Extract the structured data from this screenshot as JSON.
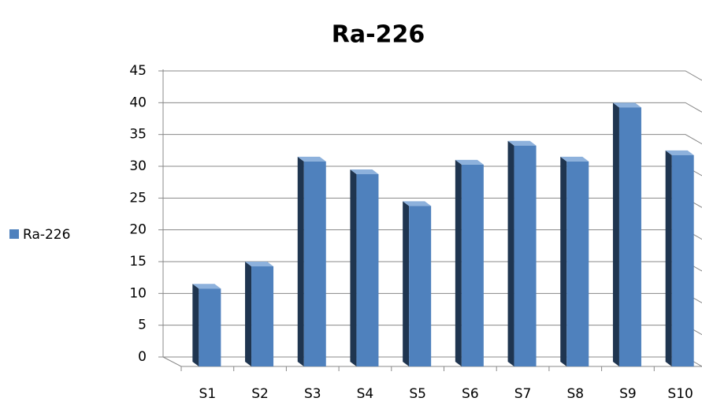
{
  "chart_data": {
    "type": "bar",
    "title": "Ra-226",
    "categories": [
      "S1",
      "S2",
      "S3",
      "S4",
      "S5",
      "S6",
      "S7",
      "S8",
      "S9",
      "S10"
    ],
    "series": [
      {
        "name": "Ra-226",
        "color": "#4f81bd",
        "values": [
          11.5,
          15,
          31.5,
          29.5,
          24.5,
          31,
          34,
          31.5,
          40,
          32.5
        ]
      }
    ],
    "ylim": [
      0,
      45
    ],
    "yticks": [
      0,
      5,
      10,
      15,
      20,
      25,
      30,
      35,
      40,
      45
    ],
    "grid": true,
    "legend": "left"
  }
}
